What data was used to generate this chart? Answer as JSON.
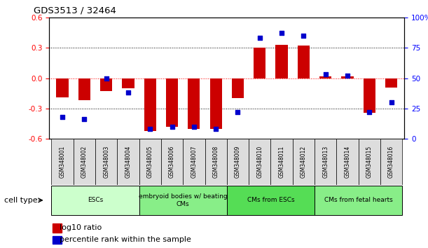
{
  "title": "GDS3513 / 32464",
  "samples": [
    "GSM348001",
    "GSM348002",
    "GSM348003",
    "GSM348004",
    "GSM348005",
    "GSM348006",
    "GSM348007",
    "GSM348008",
    "GSM348009",
    "GSM348010",
    "GSM348011",
    "GSM348012",
    "GSM348013",
    "GSM348014",
    "GSM348015",
    "GSM348016"
  ],
  "log10_ratio": [
    -0.19,
    -0.22,
    -0.13,
    -0.1,
    -0.52,
    -0.48,
    -0.5,
    -0.5,
    -0.2,
    0.3,
    0.33,
    0.32,
    0.02,
    0.02,
    -0.34,
    -0.09
  ],
  "percentile_rank": [
    18,
    16,
    50,
    38,
    8,
    10,
    10,
    8,
    22,
    83,
    87,
    85,
    53,
    52,
    22,
    30
  ],
  "bar_color": "#cc0000",
  "dot_color": "#0000cc",
  "ylim_left": [
    -0.6,
    0.6
  ],
  "ylim_right": [
    0,
    100
  ],
  "yticks_left": [
    -0.6,
    -0.3,
    0.0,
    0.3,
    0.6
  ],
  "yticks_right": [
    0,
    25,
    50,
    75,
    100
  ],
  "ytick_labels_right": [
    "0",
    "25",
    "50",
    "75",
    "100%"
  ],
  "cell_type_groups": [
    {
      "label": "ESCs",
      "start": 0,
      "end": 3,
      "color": "#ccffcc"
    },
    {
      "label": "embryoid bodies w/ beating\nCMs",
      "start": 4,
      "end": 7,
      "color": "#88ee88"
    },
    {
      "label": "CMs from ESCs",
      "start": 8,
      "end": 11,
      "color": "#55dd55"
    },
    {
      "label": "CMs from fetal hearts",
      "start": 12,
      "end": 15,
      "color": "#88ee88"
    }
  ],
  "cell_type_label": "cell type",
  "legend_bar_label": "log10 ratio",
  "legend_dot_label": "percentile rank within the sample",
  "bar_width": 0.55,
  "sample_box_color": "#dddddd",
  "fig_bg": "#ffffff"
}
